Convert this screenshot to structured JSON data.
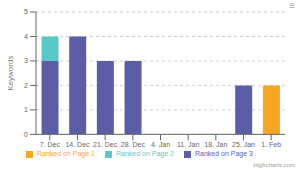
{
  "chart_data": {
    "type": "bar",
    "stacked": true,
    "ylabel": "Keywords",
    "categories": [
      "7. Dec",
      "14. Dec",
      "21. Dec",
      "28. Dec",
      "4. Jan",
      "11. Jan",
      "18. Jan",
      "25. Jan",
      "1. Feb"
    ],
    "series": [
      {
        "name": "Ranked on Page 3",
        "color": "#5b5ea6",
        "values": [
          3,
          4,
          3,
          3,
          0,
          0,
          0,
          2,
          0
        ]
      },
      {
        "name": "Ranked on Page 2",
        "color": "#5bc8c8",
        "values": [
          1,
          0,
          0,
          0,
          0,
          0,
          0,
          0,
          0
        ]
      },
      {
        "name": "Ranked on Page 1",
        "color": "#f5a623",
        "values": [
          0,
          0,
          0,
          0,
          0,
          0,
          0,
          0,
          2
        ]
      }
    ],
    "ylim": [
      0,
      5
    ],
    "yticks": [
      0,
      1,
      2,
      3,
      4,
      5
    ],
    "grid": true,
    "legend": "bottom",
    "annotations": [
      "Highcharts.com",
      "≡"
    ]
  }
}
